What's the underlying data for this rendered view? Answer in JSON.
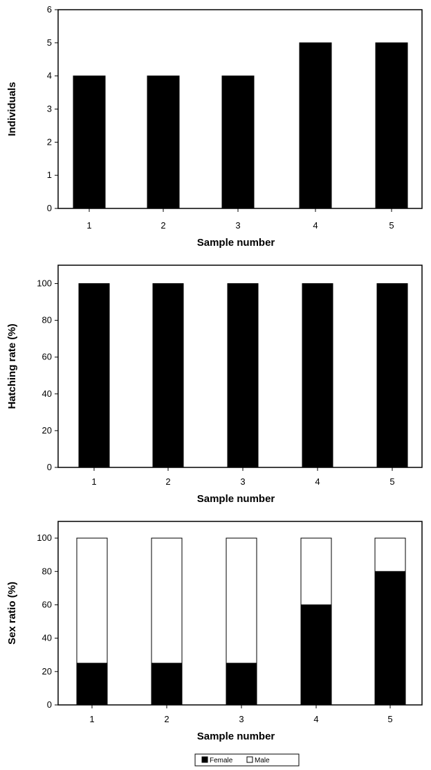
{
  "chart_data": [
    {
      "type": "bar",
      "categories": [
        "1",
        "2",
        "3",
        "4",
        "5"
      ],
      "values": [
        4,
        4,
        4,
        5,
        5
      ],
      "xlabel": "Sample number",
      "ylabel": "Individuals",
      "ylim": [
        0,
        6
      ],
      "yticks": [
        0,
        1,
        2,
        3,
        4,
        5,
        6
      ],
      "grid": false,
      "bar_color": "#000000"
    },
    {
      "type": "bar",
      "categories": [
        "1",
        "2",
        "3",
        "4",
        "5"
      ],
      "values": [
        100,
        100,
        100,
        100,
        100
      ],
      "xlabel": "Sample number",
      "ylabel": "Hatching rate (%)",
      "ylim": [
        0,
        110
      ],
      "yticks": [
        0,
        20,
        40,
        60,
        80,
        100
      ],
      "grid": false,
      "bar_color": "#000000"
    },
    {
      "type": "bar",
      "stacked": true,
      "categories": [
        "1",
        "2",
        "3",
        "4",
        "5"
      ],
      "series": [
        {
          "name": "Female",
          "values": [
            25,
            25,
            25,
            60,
            80
          ],
          "color": "#000000"
        },
        {
          "name": "Male",
          "values": [
            75,
            75,
            75,
            40,
            20
          ],
          "color": "#ffffff"
        }
      ],
      "xlabel": "Sample number",
      "ylabel": "Sex ratio (%)",
      "ylim": [
        0,
        110
      ],
      "yticks": [
        0,
        20,
        40,
        60,
        80,
        100
      ],
      "grid": false,
      "legend_position": "bottom"
    }
  ]
}
